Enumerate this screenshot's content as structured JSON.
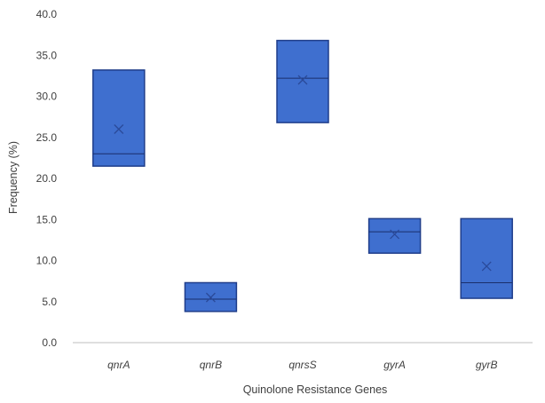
{
  "chart_data": {
    "type": "box",
    "xlabel": "Quinolone Resistance Genes",
    "ylabel": "Frequency (%)",
    "ylim": [
      0,
      40
    ],
    "yticks": [
      "0.0",
      "5.0",
      "10.0",
      "15.0",
      "20.0",
      "25.0",
      "30.0",
      "35.0",
      "40.0"
    ],
    "grid": false,
    "categories": [
      "qnrA",
      "qnrB",
      "qnrsS",
      "gyrA",
      "gyrB"
    ],
    "boxes": [
      {
        "q1": 21.5,
        "median": 23.0,
        "q3": 33.2,
        "mean": 26.0
      },
      {
        "q1": 3.8,
        "median": 5.3,
        "q3": 7.3,
        "mean": 5.5
      },
      {
        "q1": 26.8,
        "median": 32.2,
        "q3": 36.8,
        "mean": 32.0
      },
      {
        "q1": 10.9,
        "median": 13.5,
        "q3": 15.1,
        "mean": 13.2
      },
      {
        "q1": 5.4,
        "median": 7.3,
        "q3": 15.1,
        "mean": 9.3
      }
    ],
    "colors": {
      "box_fill": "#3f6fcf",
      "box_stroke": "#1f3d8a",
      "median_line": "#1a2f6b",
      "mean_marker": "#2a4a9a",
      "axis": "#bfbfbf"
    }
  }
}
